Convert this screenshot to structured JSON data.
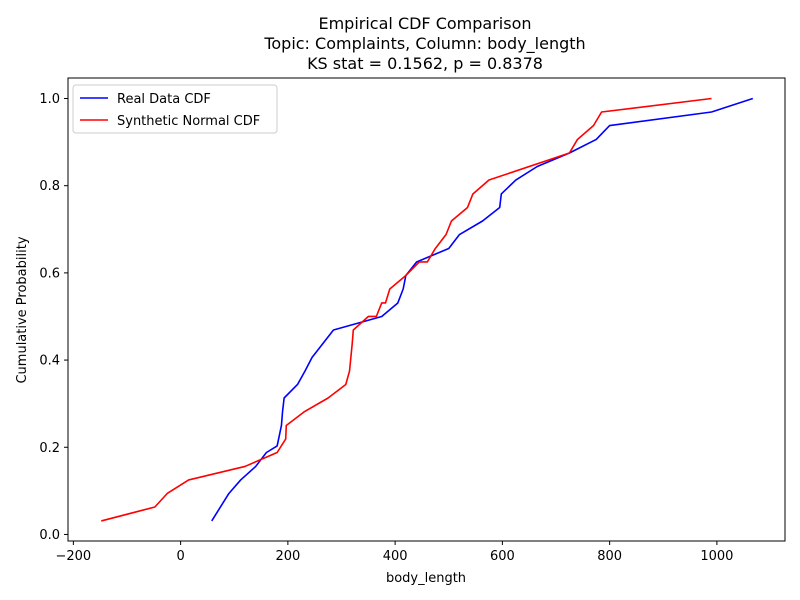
{
  "chart_data": {
    "type": "line",
    "title_lines": [
      "Empirical CDF Comparison",
      "Topic: Complaints, Column: body_length",
      "KS stat = 0.1562, p = 0.8378"
    ],
    "xlabel": "body_length",
    "ylabel": "Cumulative Probability",
    "xlim": [
      -210,
      1127
    ],
    "ylim": [
      -0.015,
      1.047
    ],
    "xticks": [
      -200,
      0,
      200,
      400,
      600,
      800,
      1000
    ],
    "xtick_labels": [
      "−200",
      "0",
      "200",
      "400",
      "600",
      "800",
      "1000"
    ],
    "yticks": [
      0.0,
      0.2,
      0.4,
      0.6,
      0.8,
      1.0
    ],
    "ytick_labels": [
      "0.0",
      "0.2",
      "0.4",
      "0.6",
      "0.8",
      "1.0"
    ],
    "grid": false,
    "legend_position": "top-left",
    "series": [
      {
        "name": "Real Data CDF",
        "color": "#0000ff",
        "x": [
          58,
          90,
          112,
          140,
          160,
          180,
          188,
          190,
          193,
          218,
          232,
          245,
          285,
          375,
          405,
          415,
          420,
          440,
          500,
          520,
          563,
          595,
          598,
          625,
          665,
          725,
          775,
          800,
          990,
          1067
        ],
        "y": [
          0.031,
          0.094,
          0.125,
          0.156,
          0.188,
          0.203,
          0.25,
          0.281,
          0.313,
          0.344,
          0.375,
          0.406,
          0.469,
          0.5,
          0.531,
          0.563,
          0.594,
          0.625,
          0.656,
          0.688,
          0.719,
          0.75,
          0.781,
          0.813,
          0.844,
          0.875,
          0.906,
          0.938,
          0.969,
          1.0
        ]
      },
      {
        "name": "Synthetic Normal CDF",
        "color": "#ff0000",
        "x": [
          -148,
          -48,
          -25,
          15,
          120,
          180,
          196,
          197,
          230,
          275,
          308,
          315,
          320,
          322,
          350,
          365,
          375,
          382,
          390,
          420,
          445,
          460,
          475,
          495,
          505,
          535,
          545,
          575,
          725,
          740,
          770,
          785,
          990
        ],
        "y": [
          0.031,
          0.063,
          0.094,
          0.125,
          0.156,
          0.188,
          0.219,
          0.25,
          0.281,
          0.313,
          0.344,
          0.375,
          0.438,
          0.469,
          0.5,
          0.5,
          0.531,
          0.531,
          0.563,
          0.594,
          0.625,
          0.625,
          0.656,
          0.688,
          0.719,
          0.75,
          0.781,
          0.813,
          0.875,
          0.906,
          0.938,
          0.969,
          1.0
        ]
      }
    ]
  }
}
